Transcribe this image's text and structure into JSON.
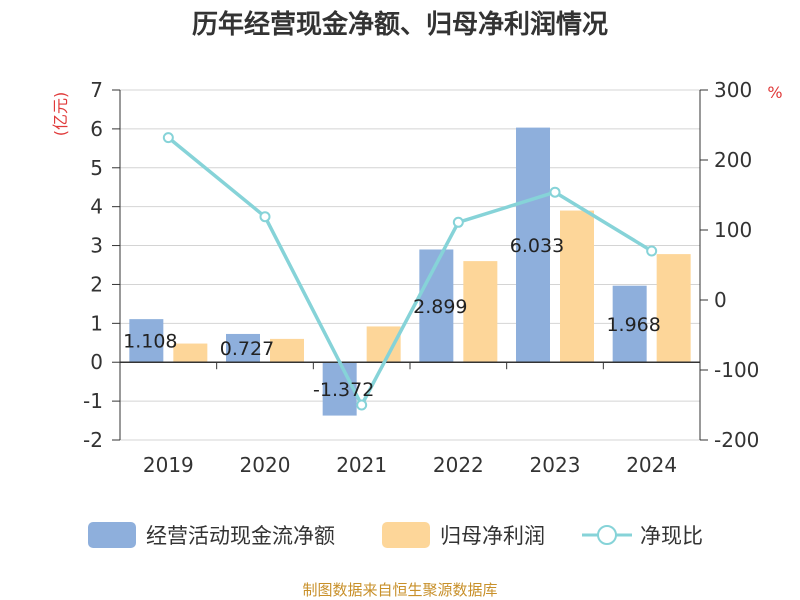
{
  "chart_data": {
    "type": "bar",
    "title": "历年经营现金净额、归母净利润情况",
    "categories": [
      "2019",
      "2020",
      "2021",
      "2022",
      "2023",
      "2024"
    ],
    "y_left": {
      "unit": "(亿元)",
      "ylim": [
        -2,
        7
      ],
      "ticks": [
        "-2",
        "-1",
        "0",
        "1",
        "2",
        "3",
        "4",
        "5",
        "6",
        "7"
      ]
    },
    "y_right": {
      "unit": "%",
      "ylim": [
        -200,
        300
      ],
      "ticks": [
        "-200",
        "-100",
        "0",
        "100",
        "200",
        "300"
      ]
    },
    "series": [
      {
        "name": "经营活动现金流净额",
        "kind": "bar",
        "axis": "left",
        "color": "#8eafdc",
        "values": [
          1.108,
          0.727,
          -1.372,
          2.899,
          6.033,
          1.968
        ],
        "labels": [
          "1.108",
          "0.727",
          "-1.372",
          "2.899",
          "6.033",
          "1.968"
        ]
      },
      {
        "name": "归母净利润",
        "kind": "bar",
        "axis": "left",
        "color": "#fdd699",
        "values": [
          0.48,
          0.6,
          0.92,
          2.6,
          3.9,
          2.78
        ]
      },
      {
        "name": "净现比",
        "kind": "line",
        "axis": "right",
        "color": "#86d3d8",
        "values": [
          232,
          119,
          -150,
          111,
          154,
          70
        ]
      }
    ],
    "legend": "bottom",
    "grid": true,
    "source": "制图数据来自恒生聚源数据库"
  }
}
